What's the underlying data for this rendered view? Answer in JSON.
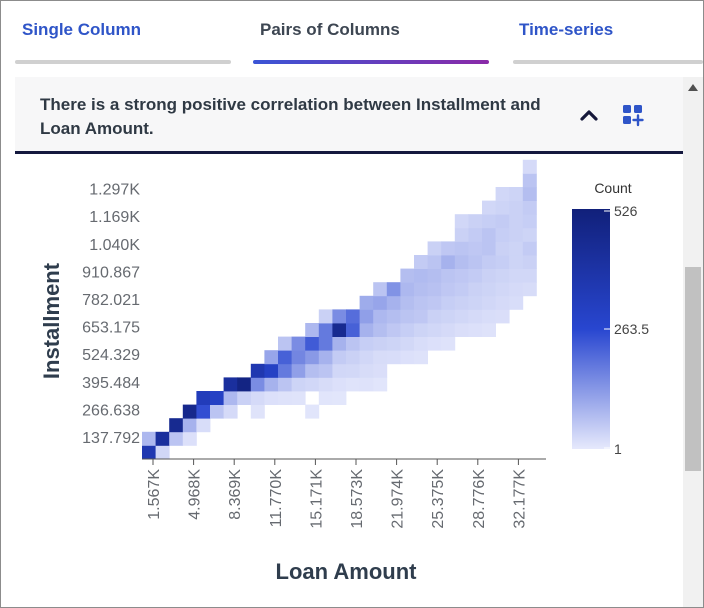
{
  "tabs": [
    {
      "label": "Single Column",
      "active": false
    },
    {
      "label": "Pairs of Columns",
      "active": true
    },
    {
      "label": "Time-series",
      "active": false
    }
  ],
  "insight": {
    "text": "There is a strong positive correlation between Installment and Loan Amount.",
    "collapse_icon": "chevron-up-icon",
    "add_icon": "add-widget-icon"
  },
  "colors": {
    "accent": "#2f55c8",
    "header_rule": "#14183e",
    "heat_low": "#e6e9fc",
    "heat_mid": "#2846d0",
    "heat_high": "#11207a"
  },
  "chart_data": {
    "type": "heatmap",
    "xlabel": "Loan Amount",
    "ylabel": "Installment",
    "x_ticks": [
      "1.567K",
      "4.968K",
      "8.369K",
      "11.770K",
      "15.171K",
      "18.573K",
      "21.974K",
      "25.375K",
      "28.776K",
      "32.177K"
    ],
    "y_ticks": [
      "137.792",
      "266.638",
      "395.484",
      "524.329",
      "653.175",
      "782.021",
      "910.867",
      "1.040K",
      "1.169K",
      "1.297K"
    ],
    "legend": {
      "title": "Count",
      "min": 1,
      "mid": 263.5,
      "max": 526,
      "tick_labels": [
        "526",
        "263.5",
        "1"
      ]
    },
    "grid": false,
    "cells_note": "cells: [x_bin, y_bin, count]",
    "cells": [
      [
        0,
        0,
        360
      ],
      [
        1,
        0,
        30
      ],
      [
        0,
        1,
        80
      ],
      [
        1,
        1,
        420
      ],
      [
        2,
        1,
        60
      ],
      [
        3,
        1,
        15
      ],
      [
        2,
        2,
        460
      ],
      [
        3,
        2,
        90
      ],
      [
        4,
        2,
        20
      ],
      [
        3,
        3,
        470
      ],
      [
        4,
        3,
        250
      ],
      [
        5,
        3,
        60
      ],
      [
        6,
        3,
        25
      ],
      [
        8,
        3,
        10
      ],
      [
        12,
        3,
        8
      ],
      [
        4,
        4,
        330
      ],
      [
        5,
        4,
        300
      ],
      [
        6,
        4,
        80
      ],
      [
        7,
        4,
        40
      ],
      [
        8,
        4,
        25
      ],
      [
        9,
        4,
        15
      ],
      [
        10,
        4,
        12
      ],
      [
        11,
        4,
        10
      ],
      [
        13,
        4,
        8
      ],
      [
        14,
        4,
        6
      ],
      [
        6,
        5,
        420
      ],
      [
        7,
        5,
        500
      ],
      [
        8,
        5,
        150
      ],
      [
        9,
        5,
        90
      ],
      [
        10,
        5,
        60
      ],
      [
        11,
        5,
        35
      ],
      [
        12,
        5,
        30
      ],
      [
        13,
        5,
        22
      ],
      [
        14,
        5,
        15
      ],
      [
        15,
        5,
        10
      ],
      [
        16,
        5,
        12
      ],
      [
        17,
        5,
        8
      ],
      [
        8,
        6,
        360
      ],
      [
        9,
        6,
        300
      ],
      [
        10,
        6,
        180
      ],
      [
        11,
        6,
        120
      ],
      [
        12,
        6,
        70
      ],
      [
        13,
        6,
        60
      ],
      [
        14,
        6,
        30
      ],
      [
        15,
        6,
        28
      ],
      [
        16,
        6,
        22
      ],
      [
        17,
        6,
        18
      ],
      [
        9,
        7,
        110
      ],
      [
        10,
        7,
        220
      ],
      [
        11,
        7,
        160
      ],
      [
        12,
        7,
        130
      ],
      [
        13,
        7,
        90
      ],
      [
        14,
        7,
        50
      ],
      [
        15,
        7,
        40
      ],
      [
        16,
        7,
        30
      ],
      [
        17,
        7,
        22
      ],
      [
        18,
        7,
        20
      ],
      [
        19,
        7,
        15
      ],
      [
        20,
        7,
        12
      ],
      [
        10,
        8,
        60
      ],
      [
        11,
        8,
        150
      ],
      [
        12,
        8,
        230
      ],
      [
        13,
        8,
        180
      ],
      [
        14,
        8,
        90
      ],
      [
        15,
        8,
        60
      ],
      [
        16,
        8,
        45
      ],
      [
        17,
        8,
        40
      ],
      [
        18,
        8,
        35
      ],
      [
        19,
        8,
        28
      ],
      [
        20,
        8,
        20
      ],
      [
        21,
        8,
        15
      ],
      [
        22,
        8,
        12
      ],
      [
        12,
        9,
        80
      ],
      [
        13,
        9,
        180
      ],
      [
        14,
        9,
        460
      ],
      [
        15,
        9,
        220
      ],
      [
        16,
        9,
        90
      ],
      [
        17,
        9,
        70
      ],
      [
        18,
        9,
        55
      ],
      [
        19,
        9,
        45
      ],
      [
        20,
        9,
        35
      ],
      [
        21,
        9,
        30
      ],
      [
        22,
        9,
        25
      ],
      [
        23,
        9,
        18
      ],
      [
        24,
        9,
        15
      ],
      [
        25,
        9,
        12
      ],
      [
        13,
        10,
        40
      ],
      [
        14,
        10,
        150
      ],
      [
        15,
        10,
        200
      ],
      [
        16,
        10,
        120
      ],
      [
        17,
        10,
        80
      ],
      [
        18,
        10,
        70
      ],
      [
        19,
        10,
        60
      ],
      [
        20,
        10,
        55
      ],
      [
        21,
        10,
        40
      ],
      [
        22,
        10,
        35
      ],
      [
        23,
        10,
        30
      ],
      [
        24,
        10,
        25
      ],
      [
        25,
        10,
        20
      ],
      [
        26,
        10,
        18
      ],
      [
        16,
        11,
        100
      ],
      [
        17,
        11,
        110
      ],
      [
        18,
        11,
        90
      ],
      [
        19,
        11,
        70
      ],
      [
        20,
        11,
        60
      ],
      [
        21,
        11,
        55
      ],
      [
        22,
        11,
        45
      ],
      [
        23,
        11,
        40
      ],
      [
        24,
        11,
        35
      ],
      [
        25,
        11,
        30
      ],
      [
        26,
        11,
        25
      ],
      [
        27,
        11,
        20
      ],
      [
        17,
        12,
        60
      ],
      [
        18,
        12,
        140
      ],
      [
        19,
        12,
        80
      ],
      [
        20,
        12,
        70
      ],
      [
        21,
        12,
        65
      ],
      [
        22,
        12,
        55
      ],
      [
        23,
        12,
        50
      ],
      [
        24,
        12,
        40
      ],
      [
        25,
        12,
        35
      ],
      [
        26,
        12,
        30
      ],
      [
        27,
        12,
        25
      ],
      [
        28,
        12,
        22
      ],
      [
        19,
        13,
        70
      ],
      [
        20,
        13,
        75
      ],
      [
        21,
        13,
        70
      ],
      [
        22,
        13,
        60
      ],
      [
        23,
        13,
        55
      ],
      [
        24,
        13,
        50
      ],
      [
        25,
        13,
        40
      ],
      [
        26,
        13,
        35
      ],
      [
        27,
        13,
        30
      ],
      [
        28,
        13,
        30
      ],
      [
        20,
        14,
        50
      ],
      [
        21,
        14,
        60
      ],
      [
        22,
        14,
        90
      ],
      [
        23,
        14,
        70
      ],
      [
        24,
        14,
        60
      ],
      [
        25,
        14,
        50
      ],
      [
        26,
        14,
        45
      ],
      [
        27,
        14,
        35
      ],
      [
        28,
        14,
        40
      ],
      [
        21,
        15,
        40
      ],
      [
        22,
        15,
        55
      ],
      [
        23,
        15,
        60
      ],
      [
        24,
        15,
        55
      ],
      [
        25,
        15,
        60
      ],
      [
        26,
        15,
        40
      ],
      [
        27,
        15,
        35
      ],
      [
        28,
        15,
        50
      ],
      [
        23,
        16,
        40
      ],
      [
        24,
        16,
        50
      ],
      [
        25,
        16,
        60
      ],
      [
        26,
        16,
        45
      ],
      [
        27,
        16,
        40
      ],
      [
        28,
        16,
        35
      ],
      [
        23,
        17,
        30
      ],
      [
        24,
        17,
        40
      ],
      [
        25,
        17,
        45
      ],
      [
        26,
        17,
        50
      ],
      [
        27,
        17,
        40
      ],
      [
        28,
        17,
        45
      ],
      [
        25,
        18,
        30
      ],
      [
        26,
        18,
        35
      ],
      [
        27,
        18,
        40
      ],
      [
        28,
        18,
        50
      ],
      [
        26,
        19,
        30
      ],
      [
        27,
        19,
        35
      ],
      [
        28,
        19,
        70
      ],
      [
        28,
        20,
        60
      ],
      [
        28,
        21,
        25
      ]
    ]
  }
}
